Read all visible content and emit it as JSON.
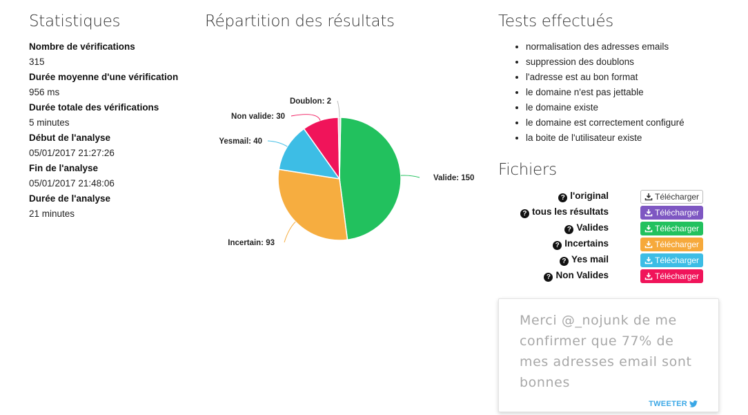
{
  "stats": {
    "title": "Statistiques",
    "items": [
      {
        "label": "Nombre de vérifications",
        "value": "315"
      },
      {
        "label": "Durée moyenne d'une vérification",
        "value": "956 ms"
      },
      {
        "label": "Durée totale des vérifications",
        "value": "5 minutes"
      },
      {
        "label": "Début de l'analyse",
        "value": "05/01/2017 21:27:26"
      },
      {
        "label": "Fin de l'analyse",
        "value": "05/01/2017 21:48:06"
      },
      {
        "label": "Durée de l'analyse",
        "value": "21 minutes"
      }
    ]
  },
  "chart_data": {
    "type": "pie",
    "title": "Répartition des résultats",
    "slices": [
      {
        "name": "Valide",
        "value": 150,
        "label": "Valide: 150",
        "color": "#22c15e"
      },
      {
        "name": "Incertain",
        "value": 93,
        "label": "Incertain: 93",
        "color": "#f6ad40"
      },
      {
        "name": "Yesmail",
        "value": 40,
        "label": "Yesmail: 40",
        "color": "#3dbde5"
      },
      {
        "name": "Non valide",
        "value": 30,
        "label": "Non valide: 30",
        "color": "#f0145a"
      },
      {
        "name": "Doublon",
        "value": 2,
        "label": "Doublon: 2",
        "color": "#dddddd"
      }
    ]
  },
  "tests": {
    "title": "Tests effectués",
    "items": [
      "normalisation des adresses emails",
      "suppression des doublons",
      "l'adresse est au bon format",
      "le domaine n'est pas jettable",
      "le domaine existe",
      "le domaine est correctement configuré",
      "la boite de l'utilisateur existe"
    ]
  },
  "files": {
    "title": "Fichiers",
    "help_glyph": "?",
    "button_label": "Télécharger",
    "rows": [
      {
        "label": "l'original",
        "style": "default",
        "color": "#ffffff"
      },
      {
        "label": "tous les résultats",
        "style": "purple",
        "color": "#7e57c2"
      },
      {
        "label": "Valides",
        "style": "green",
        "color": "#22c15e"
      },
      {
        "label": "Incertains",
        "style": "orange",
        "color": "#f6a93b"
      },
      {
        "label": "Yes mail",
        "style": "cyan",
        "color": "#3dbde5"
      },
      {
        "label": "Non Valides",
        "style": "pink",
        "color": "#f0145a"
      }
    ]
  },
  "tweet": {
    "text": "Merci @_nojunk de me confirmer que 77% de mes adresses email sont bonnes",
    "link_label": "TWEETER",
    "icon": "twitter-bird-icon",
    "link_color": "#3aa7e6"
  }
}
